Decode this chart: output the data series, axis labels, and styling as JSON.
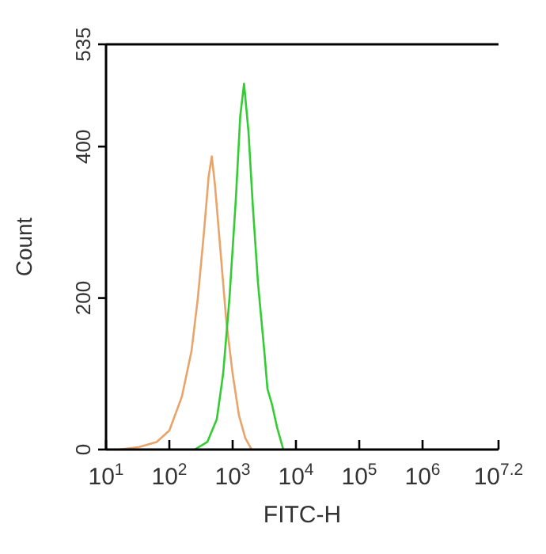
{
  "chart_data": {
    "type": "line",
    "xlabel": "FITC-H",
    "ylabel": "Count",
    "log": "x",
    "xlim": [
      10,
      15848932
    ],
    "xticks": [
      {
        "value": 10,
        "label": "10$^{1}$"
      },
      {
        "value": 100,
        "label": "10$^{2}$"
      },
      {
        "value": 1000,
        "label": "10$^{3}$"
      },
      {
        "value": 10000,
        "label": "10$^{4}$"
      },
      {
        "value": 100000,
        "label": "10$^{5}$"
      },
      {
        "value": 1000000,
        "label": "10$^{6}$"
      },
      {
        "value": 15848932,
        "label": "10$^{7.2}$"
      }
    ],
    "ylim": [
      0,
      535
    ],
    "yticks": [
      0,
      200,
      400,
      535
    ],
    "grid": false,
    "series": [
      {
        "color": "#e8a46a",
        "x": [
          16,
          32,
          63,
          100,
          158,
          224,
          282,
          355,
          417,
          468,
          525,
          631,
          794,
          1000,
          1259,
          1585,
          1995
        ],
        "values": [
          0,
          3,
          10,
          25,
          70,
          130,
          200,
          290,
          360,
          387,
          350,
          270,
          170,
          100,
          45,
          15,
          0
        ]
      },
      {
        "color": "#33cc33",
        "x": [
          251,
          398,
          562,
          708,
          891,
          1122,
          1318,
          1514,
          1778,
          2089,
          2512,
          3162,
          3548,
          4169,
          5012,
          6310
        ],
        "values": [
          0,
          10,
          40,
          100,
          200,
          330,
          440,
          483,
          420,
          320,
          220,
          130,
          80,
          60,
          30,
          0
        ]
      }
    ]
  }
}
